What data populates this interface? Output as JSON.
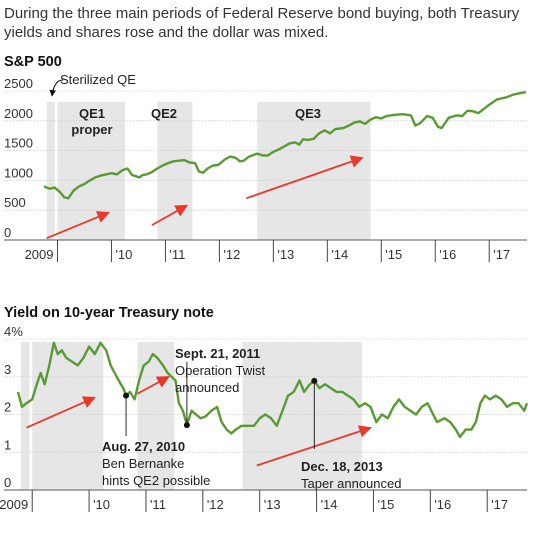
{
  "intro": "During the three main periods of Federal Reserve bond buying, both Treasury yields and shares rose and the dollar was mixed.",
  "colors": {
    "line": "#5a9a35",
    "arrow": "#e8392a",
    "shade": "#e6e6e6",
    "grid": "#cccccc"
  },
  "chart_data": [
    {
      "type": "line",
      "title": "S&P 500",
      "x_labels": [
        "2009",
        "'10",
        "'11",
        "'12",
        "'13",
        "'14",
        "'15",
        "'16",
        "'17"
      ],
      "xlim": [
        2008.75,
        2017.7
      ],
      "ylim": [
        0,
        2500
      ],
      "y_ticks": [
        0,
        500,
        1000,
        1500,
        2000,
        2500
      ],
      "y_tick_labels": [
        "0",
        "500",
        "1000",
        "1500",
        "2000",
        "2500"
      ],
      "shaded_periods": [
        {
          "label": "Sterilized QE",
          "start": 2008.8,
          "end": 2008.95
        },
        {
          "label": "QE1 proper",
          "start": 2009.0,
          "end": 2010.25
        },
        {
          "label": "QE2",
          "start": 2010.85,
          "end": 2011.5
        },
        {
          "label": "QE3",
          "start": 2012.7,
          "end": 2014.8
        }
      ],
      "annotations": [
        "Sterilized QE",
        "QE1",
        "proper",
        "QE2",
        "QE3"
      ],
      "arrows": [
        {
          "x0": 2008.8,
          "y0": 30,
          "x1": 2009.95,
          "y1": 460
        },
        {
          "x0": 2010.75,
          "y0": 250,
          "x1": 2011.4,
          "y1": 580
        },
        {
          "x0": 2012.5,
          "y0": 700,
          "x1": 2014.65,
          "y1": 1380
        }
      ],
      "series": [
        {
          "points": [
            [
              2008.75,
              900
            ],
            [
              2008.85,
              860
            ],
            [
              2008.95,
              880
            ],
            [
              2009.05,
              800
            ],
            [
              2009.12,
              720
            ],
            [
              2009.2,
              700
            ],
            [
              2009.3,
              830
            ],
            [
              2009.4,
              900
            ],
            [
              2009.5,
              940
            ],
            [
              2009.6,
              1000
            ],
            [
              2009.7,
              1050
            ],
            [
              2009.8,
              1080
            ],
            [
              2009.9,
              1100
            ],
            [
              2010.0,
              1120
            ],
            [
              2010.1,
              1100
            ],
            [
              2010.2,
              1170
            ],
            [
              2010.3,
              1200
            ],
            [
              2010.38,
              1090
            ],
            [
              2010.45,
              1070
            ],
            [
              2010.52,
              1050
            ],
            [
              2010.58,
              1090
            ],
            [
              2010.65,
              1100
            ],
            [
              2010.75,
              1140
            ],
            [
              2010.85,
              1200
            ],
            [
              2010.95,
              1250
            ],
            [
              2011.05,
              1290
            ],
            [
              2011.15,
              1320
            ],
            [
              2011.25,
              1330
            ],
            [
              2011.35,
              1340
            ],
            [
              2011.45,
              1300
            ],
            [
              2011.55,
              1290
            ],
            [
              2011.62,
              1150
            ],
            [
              2011.7,
              1130
            ],
            [
              2011.78,
              1200
            ],
            [
              2011.88,
              1250
            ],
            [
              2011.98,
              1260
            ],
            [
              2012.1,
              1350
            ],
            [
              2012.2,
              1400
            ],
            [
              2012.3,
              1380
            ],
            [
              2012.38,
              1320
            ],
            [
              2012.45,
              1330
            ],
            [
              2012.55,
              1400
            ],
            [
              2012.7,
              1450
            ],
            [
              2012.8,
              1420
            ],
            [
              2012.9,
              1420
            ],
            [
              2013.0,
              1480
            ],
            [
              2013.1,
              1520
            ],
            [
              2013.2,
              1570
            ],
            [
              2013.3,
              1620
            ],
            [
              2013.4,
              1640
            ],
            [
              2013.48,
              1600
            ],
            [
              2013.55,
              1690
            ],
            [
              2013.65,
              1680
            ],
            [
              2013.75,
              1700
            ],
            [
              2013.85,
              1790
            ],
            [
              2013.95,
              1840
            ],
            [
              2014.05,
              1790
            ],
            [
              2014.15,
              1860
            ],
            [
              2014.3,
              1880
            ],
            [
              2014.4,
              1920
            ],
            [
              2014.5,
              1970
            ],
            [
              2014.6,
              1990
            ],
            [
              2014.7,
              1950
            ],
            [
              2014.8,
              2020
            ],
            [
              2014.9,
              2060
            ],
            [
              2015.0,
              2040
            ],
            [
              2015.1,
              2080
            ],
            [
              2015.25,
              2100
            ],
            [
              2015.4,
              2110
            ],
            [
              2015.55,
              2090
            ],
            [
              2015.63,
              1920
            ],
            [
              2015.72,
              1960
            ],
            [
              2015.85,
              2080
            ],
            [
              2015.95,
              2050
            ],
            [
              2016.05,
              1900
            ],
            [
              2016.12,
              1880
            ],
            [
              2016.25,
              2050
            ],
            [
              2016.4,
              2090
            ],
            [
              2016.5,
              2080
            ],
            [
              2016.6,
              2170
            ],
            [
              2016.7,
              2160
            ],
            [
              2016.8,
              2130
            ],
            [
              2016.9,
              2200
            ],
            [
              2017.0,
              2270
            ],
            [
              2017.15,
              2360
            ],
            [
              2017.3,
              2390
            ],
            [
              2017.45,
              2440
            ],
            [
              2017.6,
              2470
            ],
            [
              2017.68,
              2480
            ]
          ]
        }
      ]
    },
    {
      "type": "line",
      "title": "Yield on 10-year Treasury note",
      "x_labels": [
        "2009",
        "'10",
        "'11",
        "'12",
        "'13",
        "'14",
        "'15",
        "'16",
        "'17"
      ],
      "xlim": [
        2008.75,
        2017.7
      ],
      "ylim": [
        0,
        4
      ],
      "y_ticks": [
        0,
        1,
        2,
        3,
        4
      ],
      "y_tick_labels": [
        "0",
        "1",
        "2",
        "3",
        "4%"
      ],
      "shaded_periods": [
        {
          "start": 2008.8,
          "end": 2008.95
        },
        {
          "start": 2009.0,
          "end": 2010.25
        },
        {
          "start": 2010.85,
          "end": 2011.5
        },
        {
          "start": 2012.7,
          "end": 2014.8
        }
      ],
      "event_markers": [
        {
          "x": 2010.65,
          "y": 2.5,
          "date": "Aug. 27, 2010",
          "text": [
            "Ben Bernanke",
            "hints QE2 possible"
          ]
        },
        {
          "x": 2011.72,
          "y": 1.72,
          "date": "Sept. 21, 2011",
          "text": [
            "Operation Twist",
            "announced"
          ]
        },
        {
          "x": 2013.96,
          "y": 2.89,
          "date": "Dec. 18, 2013",
          "text": [
            "Taper announced"
          ]
        }
      ],
      "arrows": [
        {
          "x0": 2008.9,
          "y0": 1.65,
          "x1": 2010.1,
          "y1": 2.45
        },
        {
          "x0": 2010.85,
          "y0": 2.55,
          "x1": 2011.4,
          "y1": 3.0
        },
        {
          "x0": 2012.95,
          "y0": 0.65,
          "x1": 2014.95,
          "y1": 1.65
        }
      ],
      "series": [
        {
          "points": [
            [
              2008.75,
              2.6
            ],
            [
              2008.82,
              2.2
            ],
            [
              2008.9,
              2.3
            ],
            [
              2009.0,
              2.4
            ],
            [
              2009.08,
              2.8
            ],
            [
              2009.15,
              3.1
            ],
            [
              2009.22,
              2.8
            ],
            [
              2009.3,
              3.3
            ],
            [
              2009.38,
              3.9
            ],
            [
              2009.45,
              3.6
            ],
            [
              2009.52,
              3.7
            ],
            [
              2009.6,
              3.5
            ],
            [
              2009.7,
              3.4
            ],
            [
              2009.8,
              3.3
            ],
            [
              2009.9,
              3.5
            ],
            [
              2010.0,
              3.8
            ],
            [
              2010.1,
              3.6
            ],
            [
              2010.2,
              3.9
            ],
            [
              2010.3,
              3.7
            ],
            [
              2010.38,
              3.3
            ],
            [
              2010.45,
              3.1
            ],
            [
              2010.52,
              2.9
            ],
            [
              2010.6,
              2.7
            ],
            [
              2010.65,
              2.5
            ],
            [
              2010.72,
              2.6
            ],
            [
              2010.8,
              2.4
            ],
            [
              2010.88,
              2.9
            ],
            [
              2010.96,
              3.3
            ],
            [
              2011.05,
              3.4
            ],
            [
              2011.12,
              3.6
            ],
            [
              2011.2,
              3.5
            ],
            [
              2011.3,
              3.3
            ],
            [
              2011.38,
              3.1
            ],
            [
              2011.45,
              3.0
            ],
            [
              2011.52,
              2.9
            ],
            [
              2011.58,
              2.3
            ],
            [
              2011.65,
              2.1
            ],
            [
              2011.72,
              1.72
            ],
            [
              2011.8,
              2.1
            ],
            [
              2011.88,
              2.0
            ],
            [
              2011.96,
              1.9
            ],
            [
              2012.05,
              1.95
            ],
            [
              2012.15,
              2.1
            ],
            [
              2012.25,
              2.2
            ],
            [
              2012.33,
              1.8
            ],
            [
              2012.42,
              1.6
            ],
            [
              2012.5,
              1.5
            ],
            [
              2012.58,
              1.6
            ],
            [
              2012.68,
              1.7
            ],
            [
              2012.78,
              1.7
            ],
            [
              2012.9,
              1.7
            ],
            [
              2013.0,
              1.9
            ],
            [
              2013.1,
              2.0
            ],
            [
              2013.2,
              1.9
            ],
            [
              2013.3,
              1.7
            ],
            [
              2013.4,
              2.1
            ],
            [
              2013.5,
              2.5
            ],
            [
              2013.6,
              2.6
            ],
            [
              2013.7,
              2.9
            ],
            [
              2013.78,
              2.6
            ],
            [
              2013.88,
              2.8
            ],
            [
              2013.96,
              2.89
            ],
            [
              2014.05,
              2.7
            ],
            [
              2014.15,
              2.8
            ],
            [
              2014.25,
              2.7
            ],
            [
              2014.35,
              2.6
            ],
            [
              2014.45,
              2.6
            ],
            [
              2014.55,
              2.5
            ],
            [
              2014.65,
              2.4
            ],
            [
              2014.75,
              2.2
            ],
            [
              2014.85,
              2.3
            ],
            [
              2014.95,
              2.2
            ],
            [
              2015.05,
              1.8
            ],
            [
              2015.15,
              2.0
            ],
            [
              2015.25,
              1.9
            ],
            [
              2015.35,
              2.2
            ],
            [
              2015.45,
              2.4
            ],
            [
              2015.55,
              2.2
            ],
            [
              2015.65,
              2.1
            ],
            [
              2015.75,
              2.0
            ],
            [
              2015.85,
              2.2
            ],
            [
              2015.95,
              2.3
            ],
            [
              2016.05,
              2.0
            ],
            [
              2016.12,
              1.8
            ],
            [
              2016.25,
              1.9
            ],
            [
              2016.35,
              1.8
            ],
            [
              2016.45,
              1.6
            ],
            [
              2016.52,
              1.4
            ],
            [
              2016.62,
              1.6
            ],
            [
              2016.72,
              1.6
            ],
            [
              2016.8,
              1.8
            ],
            [
              2016.88,
              2.3
            ],
            [
              2016.96,
              2.5
            ],
            [
              2017.05,
              2.4
            ],
            [
              2017.15,
              2.5
            ],
            [
              2017.25,
              2.4
            ],
            [
              2017.35,
              2.2
            ],
            [
              2017.45,
              2.3
            ],
            [
              2017.55,
              2.3
            ],
            [
              2017.65,
              2.1
            ],
            [
              2017.7,
              2.3
            ]
          ]
        }
      ]
    }
  ]
}
